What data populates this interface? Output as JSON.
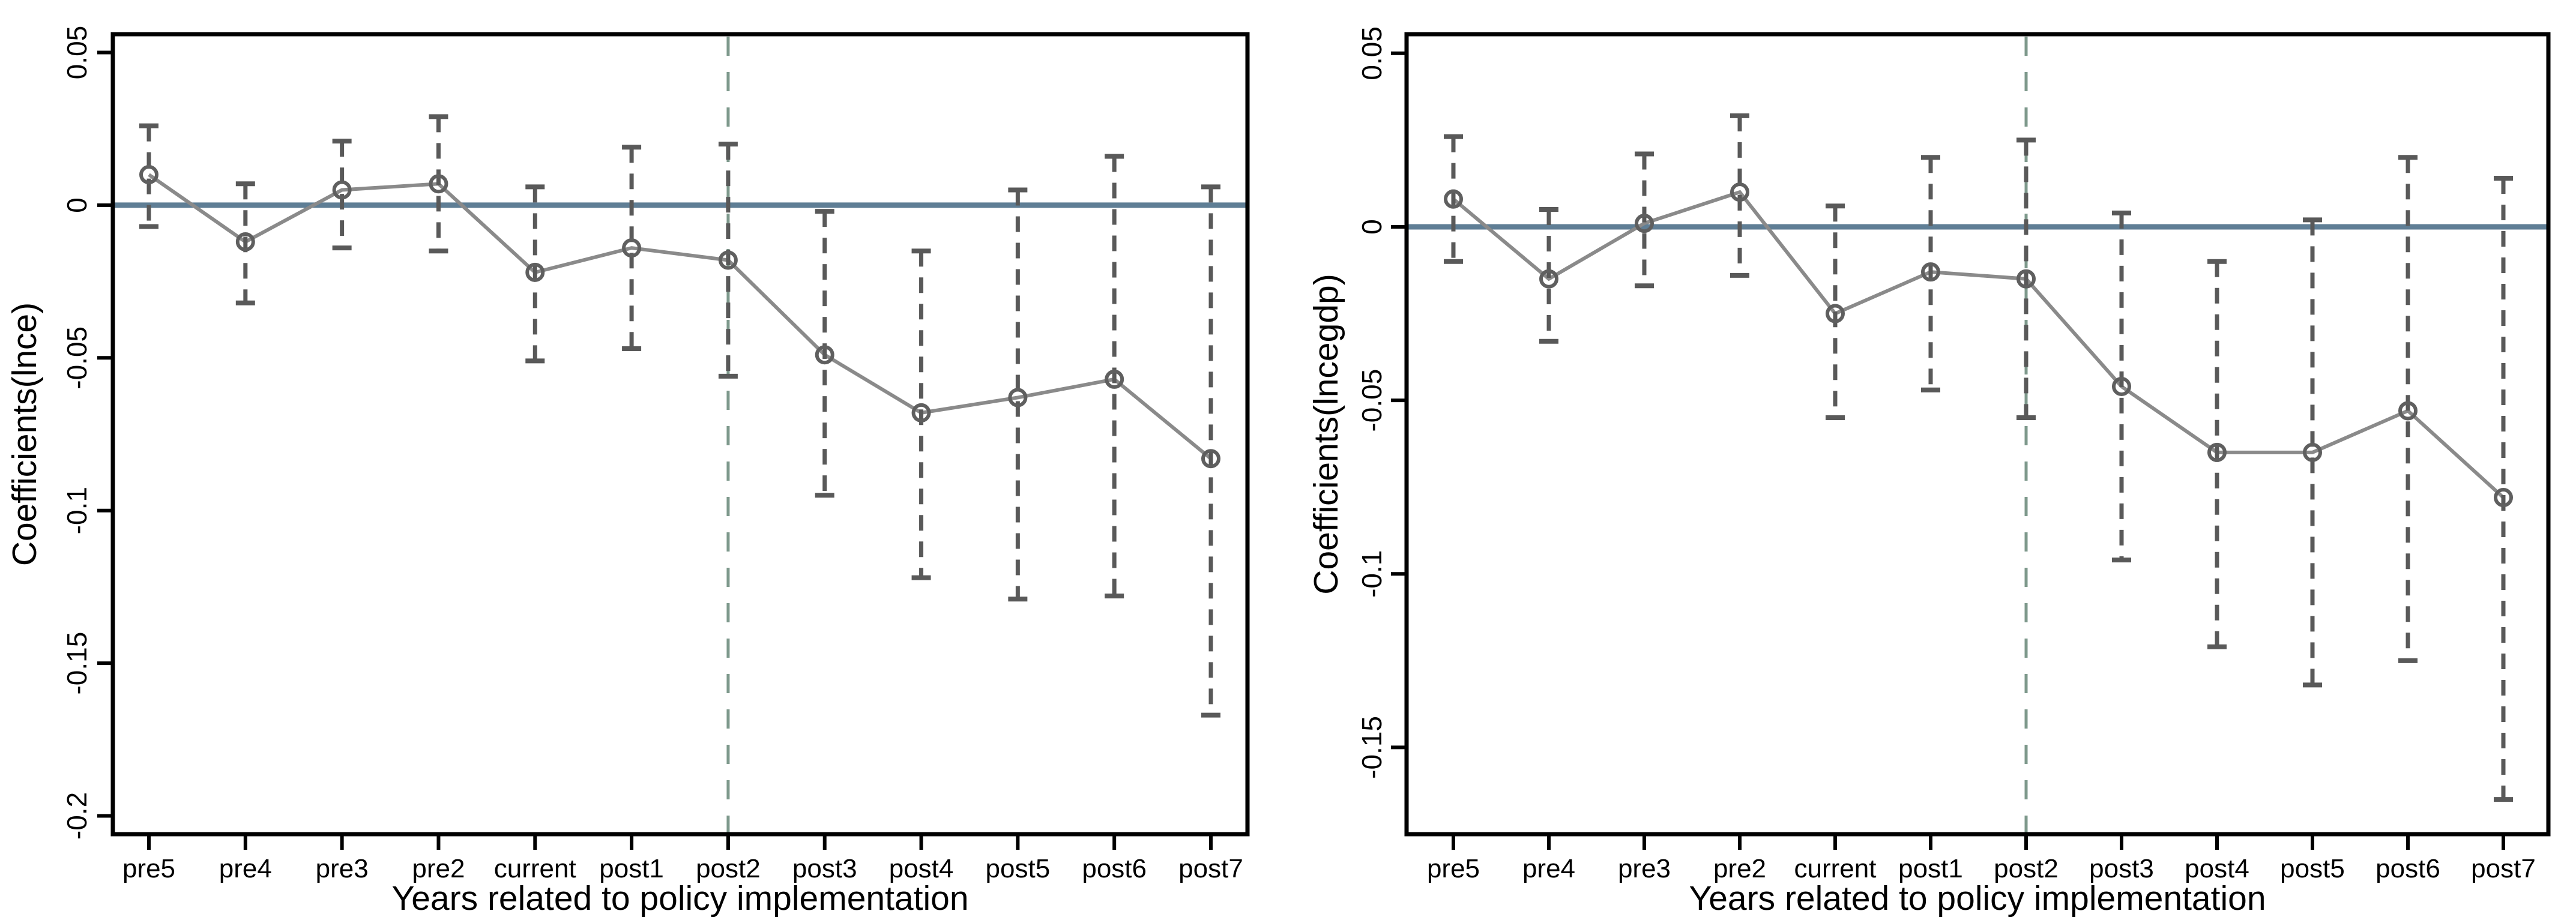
{
  "figure": {
    "description": "Two side-by-side event-study coefficient plots with 95% confidence interval whiskers",
    "background": "#ffffff"
  },
  "style": {
    "frame_color": "#000000",
    "text_color": "#000000",
    "series_line_color": "#8a8a8a",
    "marker_color": "#5f5f5f",
    "ci_color": "#595959",
    "zero_line_color": "#5f7e95",
    "vline_color": "#7e998c"
  },
  "chart_data": [
    {
      "type": "line",
      "title": "",
      "xlabel": "Years related to policy implementation",
      "ylabel": "Coefficients(lnce)",
      "categories": [
        "pre5",
        "pre4",
        "pre3",
        "pre2",
        "current",
        "post1",
        "post2",
        "post3",
        "post4",
        "post5",
        "post6",
        "post7"
      ],
      "series": [
        {
          "name": "coefficient",
          "values": [
            0.01,
            -0.012,
            0.005,
            0.007,
            -0.022,
            -0.014,
            -0.018,
            -0.049,
            -0.068,
            -0.063,
            -0.057,
            -0.083
          ],
          "ci_low": [
            -0.007,
            -0.032,
            -0.014,
            -0.015,
            -0.051,
            -0.047,
            -0.056,
            -0.095,
            -0.122,
            -0.129,
            -0.128,
            -0.167
          ],
          "ci_high": [
            0.026,
            0.007,
            0.021,
            0.029,
            0.006,
            0.019,
            0.02,
            -0.002,
            -0.015,
            0.005,
            0.016,
            0.006
          ]
        }
      ],
      "yticks": [
        0.05,
        0,
        -0.05,
        -0.1,
        -0.15,
        -0.2
      ],
      "ytick_labels": [
        "0.05",
        "0",
        "-0.05",
        "-0.1",
        "-0.15",
        "-0.2"
      ],
      "ylim": [
        -0.206,
        0.056
      ],
      "zero_line_y": 0,
      "vline_category": "post2",
      "grid": false,
      "legend": "none"
    },
    {
      "type": "line",
      "title": "",
      "xlabel": "Years related to policy implementation",
      "ylabel": "Coefficients(lncegdp)",
      "categories": [
        "pre5",
        "pre4",
        "pre3",
        "pre2",
        "current",
        "post1",
        "post2",
        "post3",
        "post4",
        "post5",
        "post6",
        "post7"
      ],
      "series": [
        {
          "name": "coefficient",
          "values": [
            0.008,
            -0.015,
            0.001,
            0.01,
            -0.025,
            -0.013,
            -0.015,
            -0.046,
            -0.065,
            -0.065,
            -0.053,
            -0.078
          ],
          "ci_low": [
            -0.01,
            -0.033,
            -0.017,
            -0.014,
            -0.055,
            -0.047,
            -0.055,
            -0.096,
            -0.121,
            -0.132,
            -0.125,
            -0.165
          ],
          "ci_high": [
            0.026,
            0.005,
            0.021,
            0.032,
            0.006,
            0.02,
            0.025,
            0.004,
            -0.01,
            0.002,
            0.02,
            0.014
          ]
        }
      ],
      "yticks": [
        0.05,
        0,
        -0.05,
        -0.1,
        -0.15
      ],
      "ytick_labels": [
        "0.05",
        "0",
        "-0.05",
        "-0.1",
        "-0.15"
      ],
      "ylim": [
        -0.175,
        0.0555
      ],
      "zero_line_y": 0,
      "vline_category": "post2",
      "grid": false,
      "legend": "none"
    }
  ]
}
